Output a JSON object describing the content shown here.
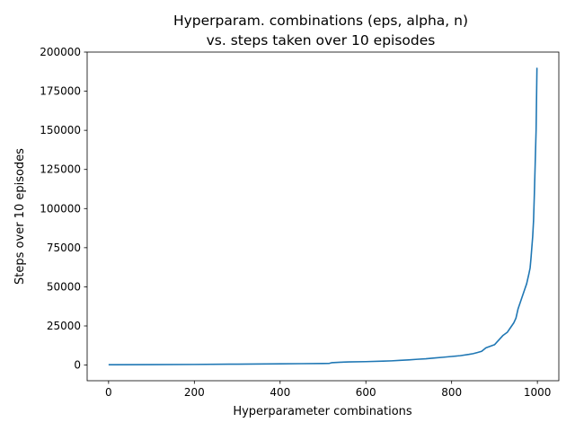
{
  "chart_data": {
    "type": "line",
    "title": "Hyperparam. combinations (eps, alpha, n)",
    "subtitle": "vs. steps taken over 10 episodes",
    "xlabel": "Hyperparameter combinations",
    "ylabel": "Steps over 10 episodes",
    "xlim": [
      -50,
      1050
    ],
    "ylim": [
      -10000,
      200000
    ],
    "xticks": [
      0,
      200,
      400,
      600,
      800,
      1000
    ],
    "yticks": [
      0,
      25000,
      50000,
      75000,
      100000,
      125000,
      150000,
      175000,
      200000
    ],
    "grid": false,
    "series": [
      {
        "color": "#1f77b4",
        "x": [
          0,
          100,
          200,
          300,
          400,
          450,
          500,
          515,
          520,
          540,
          560,
          600,
          640,
          660,
          680,
          700,
          720,
          740,
          760,
          780,
          800,
          820,
          840,
          850,
          860,
          870,
          880,
          890,
          900,
          910,
          920,
          930,
          940,
          945,
          950,
          955,
          960,
          965,
          970,
          975,
          980,
          983,
          985,
          987,
          989,
          991,
          993,
          995,
          997,
          999
        ],
        "y": [
          200,
          300,
          400,
          600,
          800,
          900,
          1000,
          1100,
          1500,
          1800,
          2000,
          2200,
          2500,
          2700,
          3000,
          3300,
          3700,
          4000,
          4500,
          5000,
          5500,
          6000,
          6800,
          7300,
          8000,
          8800,
          11000,
          12000,
          13000,
          16000,
          19000,
          21000,
          25000,
          27000,
          30000,
          36000,
          40000,
          44000,
          48000,
          52000,
          58000,
          62000,
          68000,
          75000,
          82000,
          92000,
          110000,
          130000,
          150000,
          190000
        ]
      }
    ]
  }
}
